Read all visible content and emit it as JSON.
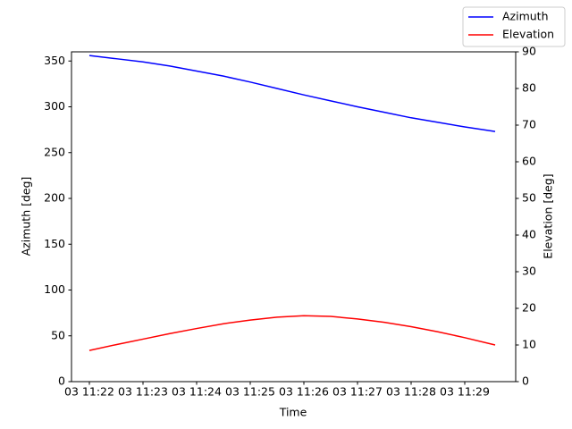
{
  "chart_data": {
    "type": "line",
    "xlabel": "Time",
    "ylabel": "Azimuth [deg]",
    "y2label": "Elevation [deg]",
    "x": [
      "03 11:22:00",
      "03 11:22:30",
      "03 11:23:00",
      "03 11:23:30",
      "03 11:24:00",
      "03 11:24:30",
      "03 11:25:00",
      "03 11:25:30",
      "03 11:26:00",
      "03 11:26:30",
      "03 11:27:00",
      "03 11:27:30",
      "03 11:28:00",
      "03 11:28:30",
      "03 11:29:00",
      "03 11:29:34"
    ],
    "series": [
      {
        "name": "Azimuth",
        "color": "#0000ff",
        "axis": "y",
        "values": [
          356,
          352.5,
          349,
          344.5,
          339,
          333.5,
          327,
          320,
          313,
          306.5,
          300,
          294,
          288,
          283,
          278,
          273
        ]
      },
      {
        "name": "Elevation",
        "color": "#ff0000",
        "axis": "y2",
        "values": [
          8.5,
          10.1,
          11.6,
          13.1,
          14.5,
          15.8,
          16.8,
          17.6,
          18,
          17.8,
          17.1,
          16.2,
          15,
          13.6,
          12,
          10
        ]
      }
    ],
    "xlim": [
      "03 11:21:40",
      "03 11:29:57"
    ],
    "xticks": [
      {
        "value": "03 11:22:00",
        "label": "03 11:22"
      },
      {
        "value": "03 11:23:00",
        "label": "03 11:23"
      },
      {
        "value": "03 11:24:00",
        "label": "03 11:24"
      },
      {
        "value": "03 11:25:00",
        "label": "03 11:25"
      },
      {
        "value": "03 11:26:00",
        "label": "03 11:26"
      },
      {
        "value": "03 11:27:00",
        "label": "03 11:27"
      },
      {
        "value": "03 11:28:00",
        "label": "03 11:28"
      },
      {
        "value": "03 11:29:00",
        "label": "03 11:29"
      }
    ],
    "ylim": [
      0,
      360
    ],
    "yticks": [
      0,
      50,
      100,
      150,
      200,
      250,
      300,
      350
    ],
    "y2lim": [
      0,
      90
    ],
    "y2ticks": [
      0,
      10,
      20,
      30,
      40,
      50,
      60,
      70,
      80,
      90
    ],
    "legend": "upper right"
  }
}
